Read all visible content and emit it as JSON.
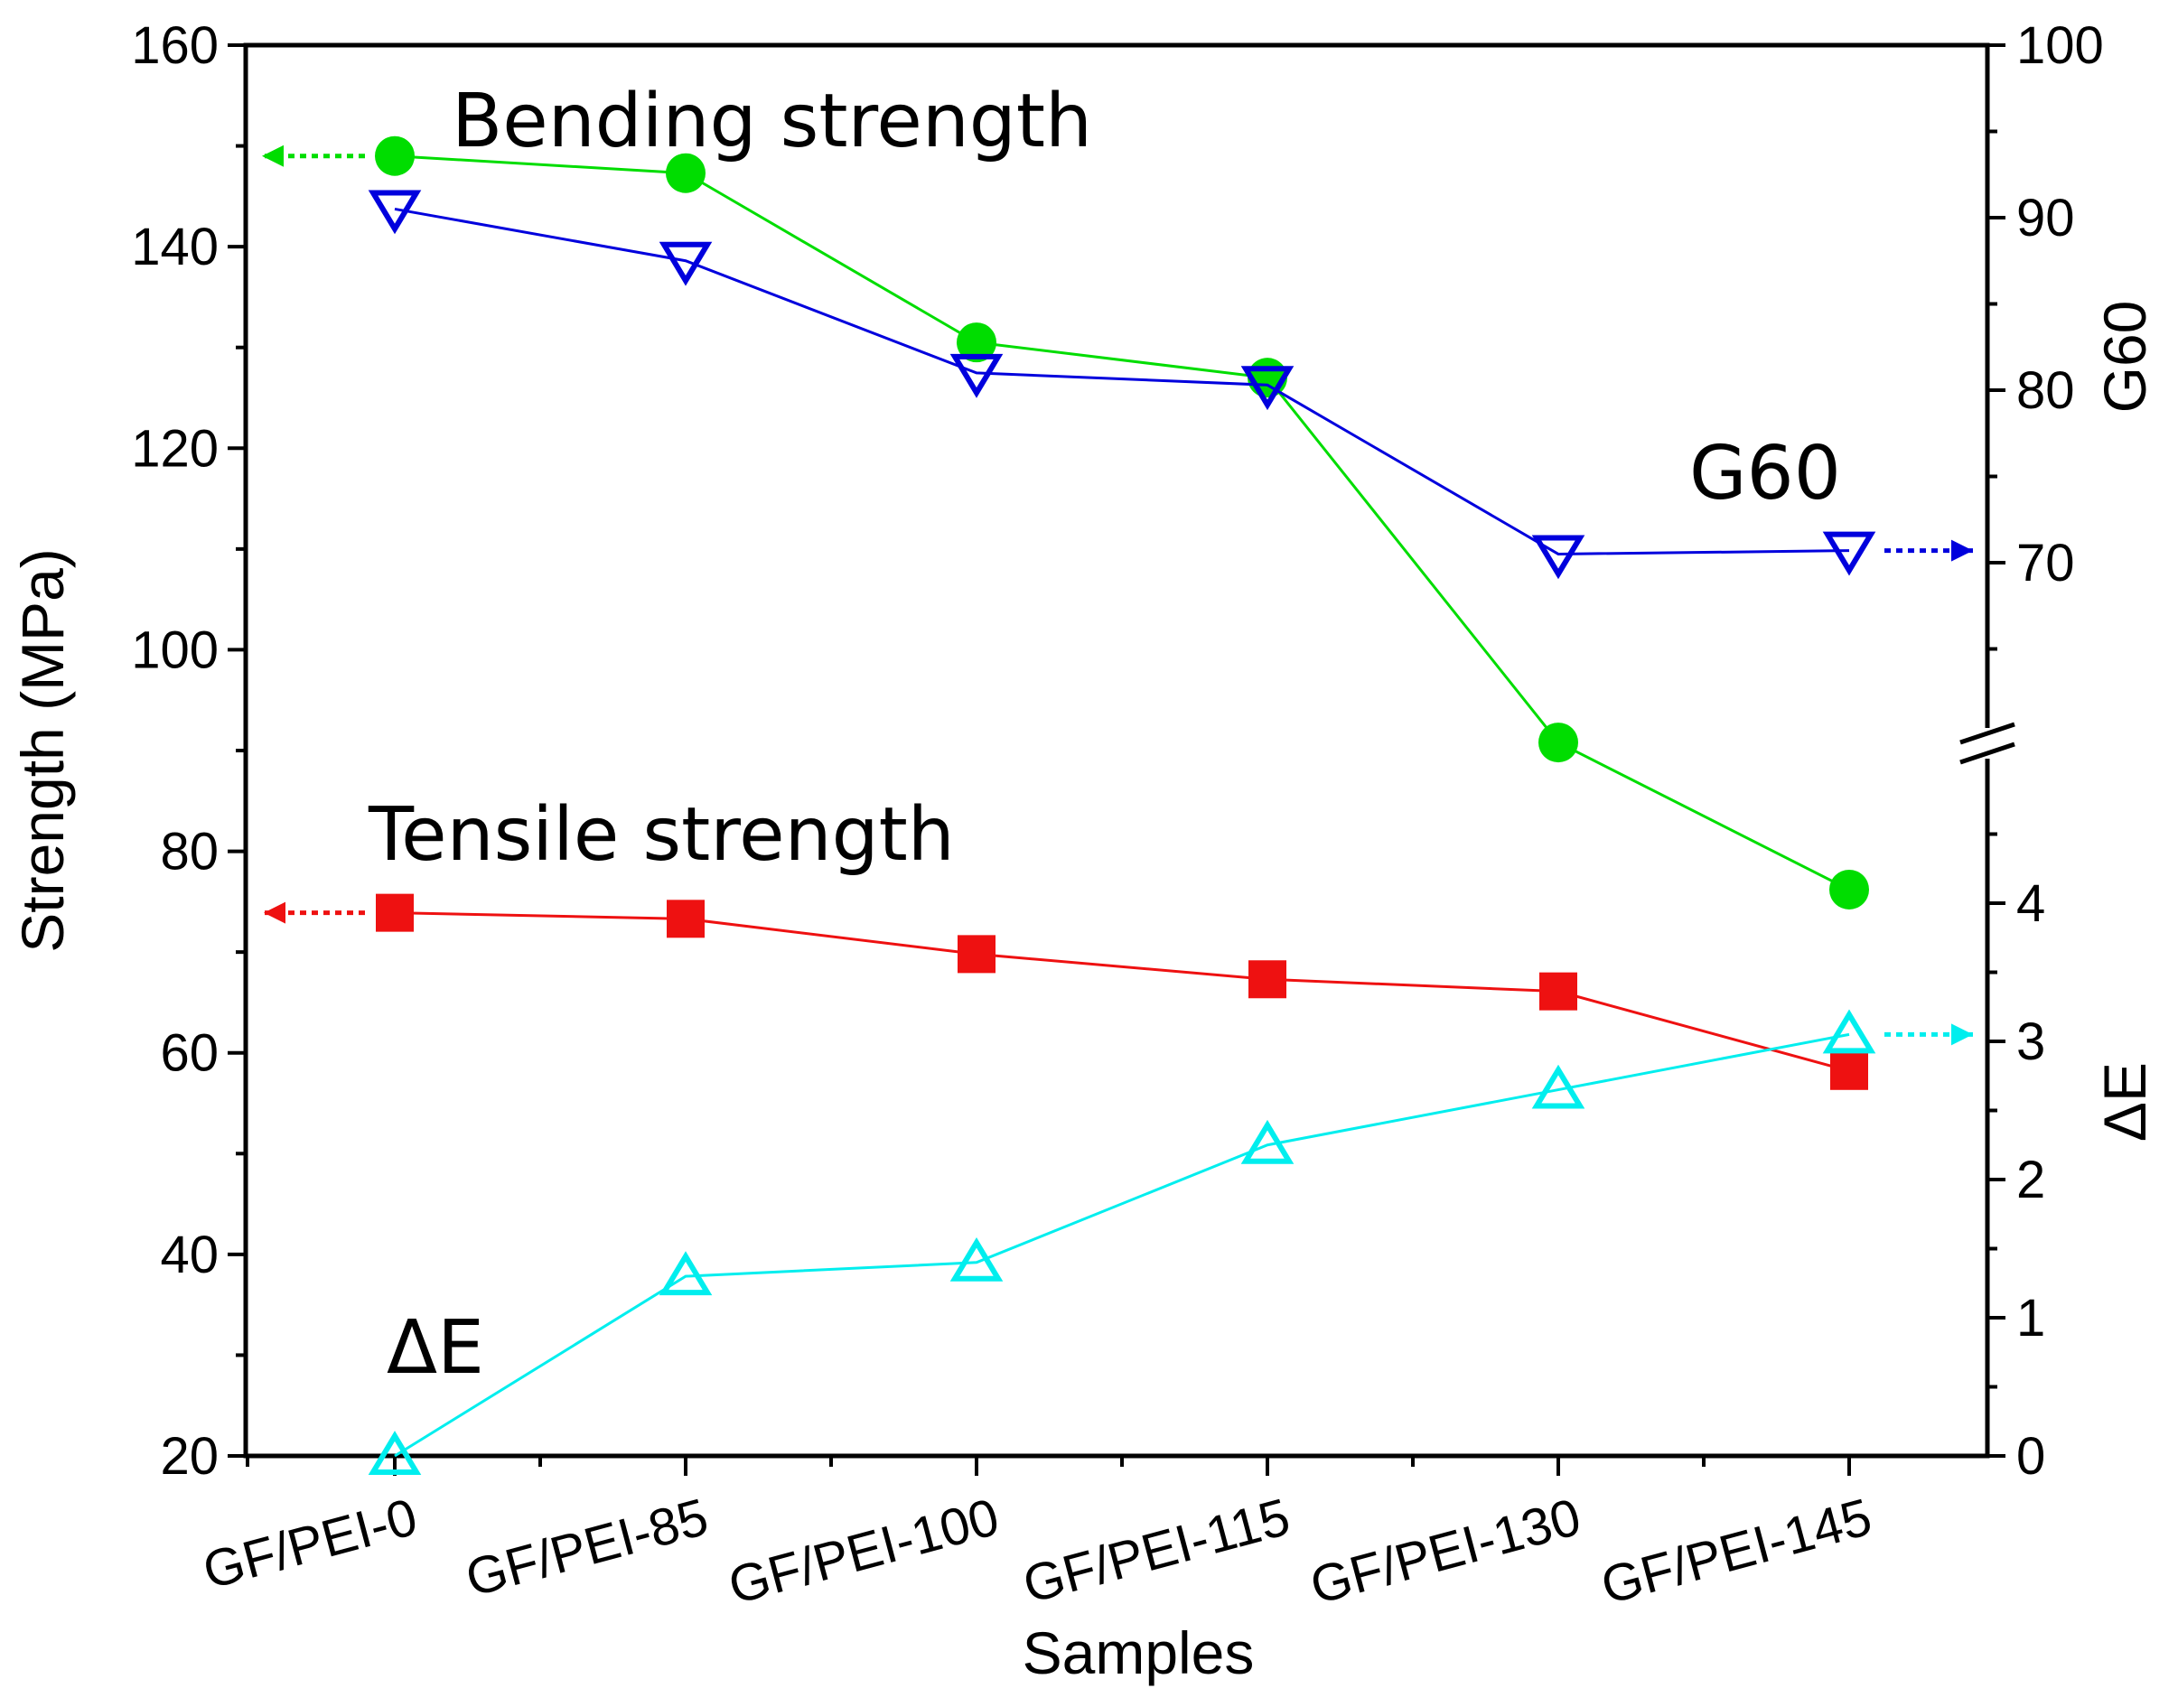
{
  "chart_data": {
    "type": "line",
    "categories": [
      "GF/PEI-0",
      "GF/PEI-85",
      "GF/PEI-100",
      "GF/PEI-115",
      "GF/PEI-130",
      "GF/PEI-145"
    ],
    "xlabel": "Samples",
    "ylabel_left": "Strength (MPa)",
    "ylim_left": [
      20,
      160
    ],
    "yticks_left": [
      "20",
      "40",
      "60",
      "80",
      "100",
      "120",
      "140",
      "160"
    ],
    "ylabel_right_upper": "G60",
    "ylim_right_upper": [
      60,
      100
    ],
    "yticks_right_upper": [
      "70",
      "80",
      "90",
      "100"
    ],
    "ylabel_right_lower": "ΔE",
    "ylim_right_lower": [
      0,
      5
    ],
    "yticks_right_lower": [
      "0",
      "1",
      "2",
      "3",
      "4"
    ],
    "right_axis_break": true,
    "grid": false,
    "series": [
      {
        "name": "Bending strength",
        "axis": "left",
        "marker": "circle-filled",
        "color": "#00dd00",
        "values": [
          149,
          147.3,
          130.5,
          127,
          90.8,
          76.2
        ]
      },
      {
        "name": "Tensile strength",
        "axis": "left",
        "marker": "square-filled",
        "color": "#ee1111",
        "values": [
          73.9,
          73.3,
          69.8,
          67.3,
          66.1,
          58.2
        ]
      },
      {
        "name": "G60",
        "axis": "right-upper",
        "marker": "triangle-down-open",
        "color": "#0000dd",
        "values": [
          90.5,
          87.5,
          81,
          80.3,
          70.5,
          70.7
        ]
      },
      {
        "name": "ΔE",
        "axis": "right-lower",
        "marker": "triangle-up-open",
        "color": "#00eeee",
        "values": [
          0,
          1.3,
          1.4,
          2.25,
          2.65,
          3.05
        ]
      }
    ],
    "annotations": [
      {
        "text": "Bending strength",
        "series": "Bending strength",
        "arrow": "left"
      },
      {
        "text": "Tensile strength",
        "series": "Tensile strength",
        "arrow": "left"
      },
      {
        "text": "G60",
        "series": "G60",
        "arrow": "right"
      },
      {
        "text": "ΔE",
        "series": "ΔE",
        "arrow": "right"
      }
    ]
  }
}
